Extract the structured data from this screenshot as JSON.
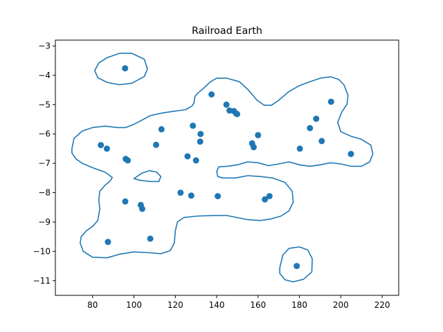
{
  "chart_data": {
    "type": "scatter",
    "title": "Railroad Earth",
    "xlabel": "",
    "ylabel": "",
    "xlim": [
      62,
      228
    ],
    "ylim": [
      -11.5,
      -2.8
    ],
    "xticks": [
      80,
      100,
      120,
      140,
      160,
      180,
      200,
      220
    ],
    "yticks": [
      -3,
      -4,
      -5,
      -6,
      -7,
      -8,
      -9,
      -10,
      -11
    ],
    "xtick_labels": [
      "80",
      "100",
      "120",
      "140",
      "160",
      "180",
      "200",
      "220"
    ],
    "ytick_labels": [
      "−3",
      "−4",
      "−5",
      "−6",
      "−7",
      "−8",
      "−9",
      "−10",
      "−11"
    ],
    "grid": false,
    "point_color": "#1f77b4",
    "contour_color": "#1f77b4",
    "points": [
      {
        "x": 95.7,
        "y": -3.76
      },
      {
        "x": 137.5,
        "y": -4.65
      },
      {
        "x": 144.7,
        "y": -5.0
      },
      {
        "x": 146.2,
        "y": -5.2
      },
      {
        "x": 148.3,
        "y": -5.22
      },
      {
        "x": 149.4,
        "y": -5.3
      },
      {
        "x": 149.9,
        "y": -5.32
      },
      {
        "x": 195.3,
        "y": -4.9
      },
      {
        "x": 188.1,
        "y": -5.48
      },
      {
        "x": 185.1,
        "y": -5.8
      },
      {
        "x": 128.5,
        "y": -5.72
      },
      {
        "x": 113.3,
        "y": -5.84
      },
      {
        "x": 132.2,
        "y": -6.0
      },
      {
        "x": 132.0,
        "y": -6.26
      },
      {
        "x": 160.0,
        "y": -6.04
      },
      {
        "x": 157.1,
        "y": -6.32
      },
      {
        "x": 157.9,
        "y": -6.45
      },
      {
        "x": 190.8,
        "y": -6.24
      },
      {
        "x": 180.2,
        "y": -6.5
      },
      {
        "x": 204.9,
        "y": -6.68
      },
      {
        "x": 84.0,
        "y": -6.38
      },
      {
        "x": 86.9,
        "y": -6.5
      },
      {
        "x": 110.7,
        "y": -6.37
      },
      {
        "x": 96.0,
        "y": -6.85
      },
      {
        "x": 97.0,
        "y": -6.9
      },
      {
        "x": 125.9,
        "y": -6.76
      },
      {
        "x": 130.0,
        "y": -6.9
      },
      {
        "x": 122.5,
        "y": -8.0
      },
      {
        "x": 127.7,
        "y": -8.1
      },
      {
        "x": 140.5,
        "y": -8.12
      },
      {
        "x": 165.5,
        "y": -8.12
      },
      {
        "x": 163.3,
        "y": -8.23
      },
      {
        "x": 95.8,
        "y": -8.3
      },
      {
        "x": 103.3,
        "y": -8.42
      },
      {
        "x": 104.0,
        "y": -8.55
      },
      {
        "x": 87.4,
        "y": -9.68
      },
      {
        "x": 107.9,
        "y": -9.57
      },
      {
        "x": 178.7,
        "y": -10.5
      }
    ],
    "contours": [
      [
        [
          81,
          -3.84
        ],
        [
          83,
          -3.58
        ],
        [
          87,
          -3.4
        ],
        [
          93,
          -3.25
        ],
        [
          99,
          -3.25
        ],
        [
          105,
          -3.45
        ],
        [
          106.5,
          -3.78
        ],
        [
          105,
          -4.04
        ],
        [
          99,
          -4.27
        ],
        [
          93,
          -4.32
        ],
        [
          87,
          -4.24
        ],
        [
          82.5,
          -4.08
        ],
        [
          81,
          -3.84
        ]
      ],
      [
        [
          170.5,
          -10.56
        ],
        [
          172,
          -10.12
        ],
        [
          175,
          -9.9
        ],
        [
          180,
          -9.85
        ],
        [
          184,
          -9.95
        ],
        [
          186.2,
          -10.25
        ],
        [
          186,
          -10.7
        ],
        [
          182,
          -10.95
        ],
        [
          177,
          -11.04
        ],
        [
          173,
          -10.97
        ],
        [
          170.5,
          -10.75
        ],
        [
          170.5,
          -10.56
        ]
      ],
      [
        [
          100,
          -7.52
        ],
        [
          104,
          -7.33
        ],
        [
          107.5,
          -7.25
        ],
        [
          111,
          -7.3
        ],
        [
          113,
          -7.45
        ],
        [
          112,
          -7.62
        ],
        [
          108,
          -7.62
        ],
        [
          103,
          -7.58
        ],
        [
          100,
          -7.52
        ]
      ],
      [
        [
          70,
          -6.5
        ],
        [
          71,
          -6.15
        ],
        [
          75,
          -5.9
        ],
        [
          80,
          -5.78
        ],
        [
          86,
          -5.73
        ],
        [
          92,
          -5.78
        ],
        [
          96,
          -5.78
        ],
        [
          100,
          -5.67
        ],
        [
          104,
          -5.52
        ],
        [
          108,
          -5.37
        ],
        [
          114,
          -5.28
        ],
        [
          120,
          -5.22
        ],
        [
          125,
          -5.17
        ],
        [
          128,
          -5.05
        ],
        [
          129,
          -4.95
        ],
        [
          129.5,
          -4.72
        ],
        [
          131,
          -4.6
        ],
        [
          133.5,
          -4.45
        ],
        [
          137,
          -4.22
        ],
        [
          140,
          -4.1
        ],
        [
          145,
          -4.1
        ],
        [
          151,
          -4.22
        ],
        [
          155,
          -4.48
        ],
        [
          158,
          -4.72
        ],
        [
          159.5,
          -4.85
        ],
        [
          163,
          -5.02
        ],
        [
          166.5,
          -5.02
        ],
        [
          170,
          -4.85
        ],
        [
          175,
          -4.55
        ],
        [
          180,
          -4.35
        ],
        [
          185,
          -4.22
        ],
        [
          190,
          -4.1
        ],
        [
          195,
          -4.05
        ],
        [
          199,
          -4.14
        ],
        [
          201.5,
          -4.32
        ],
        [
          203.5,
          -4.68
        ],
        [
          203,
          -4.98
        ],
        [
          200.5,
          -5.25
        ],
        [
          198.5,
          -5.6
        ],
        [
          200,
          -5.92
        ],
        [
          205,
          -6.08
        ],
        [
          210,
          -6.18
        ],
        [
          214.5,
          -6.38
        ],
        [
          215.5,
          -6.68
        ],
        [
          214,
          -6.95
        ],
        [
          210,
          -7.1
        ],
        [
          205,
          -7.1
        ],
        [
          200,
          -7.02
        ],
        [
          195,
          -6.98
        ],
        [
          190,
          -7.05
        ],
        [
          185,
          -7.1
        ],
        [
          180,
          -7.05
        ],
        [
          175,
          -6.95
        ],
        [
          170,
          -7.02
        ],
        [
          165,
          -7.08
        ],
        [
          160,
          -6.98
        ],
        [
          155,
          -6.95
        ],
        [
          150,
          -7.05
        ],
        [
          145,
          -7.1
        ],
        [
          141,
          -7.12
        ],
        [
          140,
          -7.28
        ],
        [
          140.5,
          -7.45
        ],
        [
          143,
          -7.5
        ],
        [
          149,
          -7.5
        ],
        [
          155,
          -7.42
        ],
        [
          161,
          -7.45
        ],
        [
          167,
          -7.5
        ],
        [
          173,
          -7.65
        ],
        [
          176.5,
          -7.95
        ],
        [
          177,
          -8.32
        ],
        [
          175,
          -8.62
        ],
        [
          171,
          -8.8
        ],
        [
          166,
          -8.9
        ],
        [
          161,
          -8.95
        ],
        [
          155,
          -8.92
        ],
        [
          150,
          -8.85
        ],
        [
          145,
          -8.78
        ],
        [
          138,
          -8.78
        ],
        [
          130,
          -8.8
        ],
        [
          124,
          -8.85
        ],
        [
          121,
          -9.0
        ],
        [
          120,
          -9.3
        ],
        [
          119.5,
          -9.72
        ],
        [
          117.5,
          -9.98
        ],
        [
          113,
          -10.08
        ],
        [
          108,
          -10.05
        ],
        [
          100,
          -10.02
        ],
        [
          93,
          -10.1
        ],
        [
          87,
          -10.22
        ],
        [
          80,
          -10.2
        ],
        [
          75.5,
          -10.0
        ],
        [
          74,
          -9.72
        ],
        [
          74.5,
          -9.5
        ],
        [
          77,
          -9.3
        ],
        [
          80,
          -9.15
        ],
        [
          82.5,
          -8.95
        ],
        [
          83.5,
          -8.55
        ],
        [
          83,
          -8.25
        ],
        [
          83.5,
          -7.95
        ],
        [
          86,
          -7.75
        ],
        [
          88.5,
          -7.6
        ],
        [
          89.5,
          -7.48
        ],
        [
          86,
          -7.3
        ],
        [
          80,
          -7.15
        ],
        [
          75,
          -7.0
        ],
        [
          72,
          -6.85
        ],
        [
          70,
          -6.65
        ],
        [
          70,
          -6.5
        ]
      ]
    ]
  }
}
